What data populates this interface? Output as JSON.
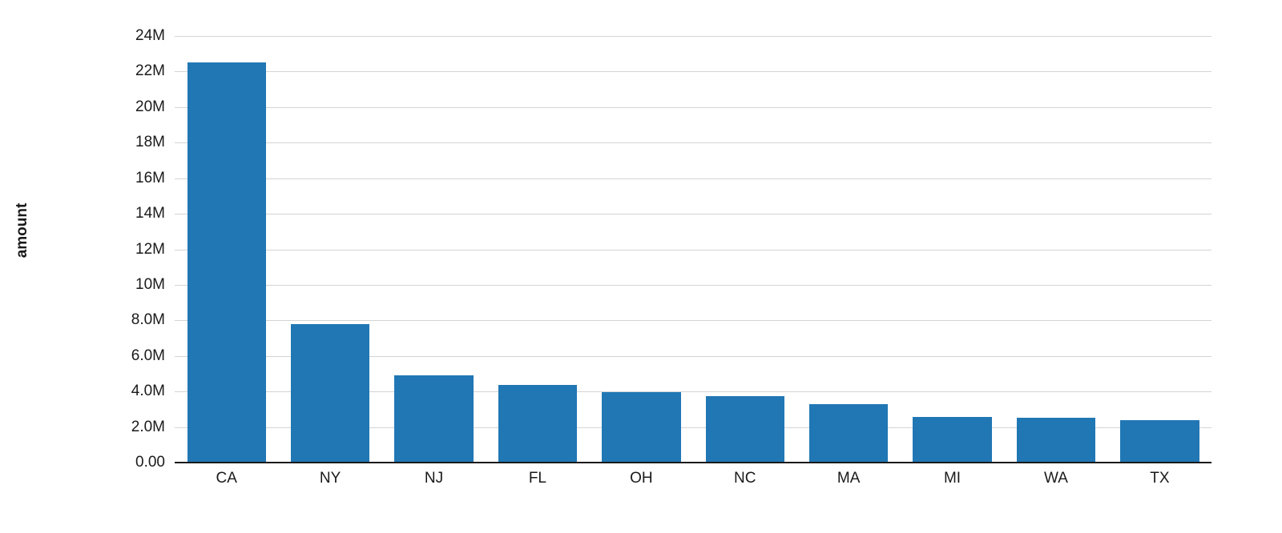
{
  "chart_data": {
    "type": "bar",
    "title": "",
    "xlabel": "",
    "ylabel": "amount",
    "categories": [
      "CA",
      "NY",
      "NJ",
      "FL",
      "OH",
      "NC",
      "MA",
      "MI",
      "WA",
      "TX"
    ],
    "values": [
      22500000,
      7800000,
      4900000,
      4350000,
      3950000,
      3750000,
      3300000,
      2550000,
      2500000,
      2400000
    ],
    "ylim": [
      0,
      24000000
    ],
    "yticks": [
      {
        "value": 0,
        "label": "0.00"
      },
      {
        "value": 2000000,
        "label": "2.0M"
      },
      {
        "value": 4000000,
        "label": "4.0M"
      },
      {
        "value": 6000000,
        "label": "6.0M"
      },
      {
        "value": 8000000,
        "label": "8.0M"
      },
      {
        "value": 10000000,
        "label": "10M"
      },
      {
        "value": 12000000,
        "label": "12M"
      },
      {
        "value": 14000000,
        "label": "14M"
      },
      {
        "value": 16000000,
        "label": "16M"
      },
      {
        "value": 18000000,
        "label": "18M"
      },
      {
        "value": 20000000,
        "label": "20M"
      },
      {
        "value": 22000000,
        "label": "22M"
      },
      {
        "value": 24000000,
        "label": "24M"
      }
    ],
    "grid": true,
    "legend": "none",
    "bar_color": "#2077B4",
    "grid_color": "#d4d4d4",
    "axis_color": "#1a1a1a"
  }
}
